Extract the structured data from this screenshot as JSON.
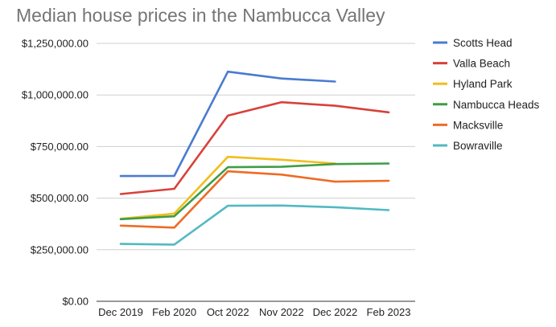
{
  "chart_data": {
    "type": "line",
    "title": "Median house prices in the Nambucca Valley",
    "xlabel": "",
    "ylabel": "",
    "categories": [
      "Dec 2019",
      "Feb 2020",
      "Oct 2022",
      "Nov 2022",
      "Dec 2022",
      "Feb 2023"
    ],
    "y_ticks": [
      {
        "value": 0,
        "label": "$0.00"
      },
      {
        "value": 250000,
        "label": "$250,000.00"
      },
      {
        "value": 500000,
        "label": "$500,000.00"
      },
      {
        "value": 750000,
        "label": "$750,000.00"
      },
      {
        "value": 1000000,
        "label": "$1,000,000.00"
      },
      {
        "value": 1250000,
        "label": "$1,250,000.00"
      }
    ],
    "ylim": [
      0,
      1250000
    ],
    "grid": "horizontal",
    "legend_position": "right",
    "series": [
      {
        "name": "Scotts Head",
        "color": "#4a7bd0",
        "values": [
          607000,
          608000,
          1113000,
          1080000,
          1065000,
          null
        ]
      },
      {
        "name": "Valla Beach",
        "color": "#d8413a",
        "values": [
          520000,
          545000,
          900000,
          965000,
          948000,
          916000
        ]
      },
      {
        "name": "Hyland Park",
        "color": "#f2be1b",
        "values": [
          400000,
          425000,
          700000,
          686000,
          668000,
          null
        ]
      },
      {
        "name": "Nambucca Heads",
        "color": "#3f9d45",
        "values": [
          398000,
          412000,
          650000,
          652000,
          665000,
          668000
        ]
      },
      {
        "name": "Macksville",
        "color": "#ed6c25",
        "values": [
          367000,
          357000,
          630000,
          614000,
          580000,
          584000
        ]
      },
      {
        "name": "Bowraville",
        "color": "#52b9c2",
        "values": [
          278000,
          275000,
          463000,
          464000,
          456000,
          442000
        ]
      }
    ]
  }
}
